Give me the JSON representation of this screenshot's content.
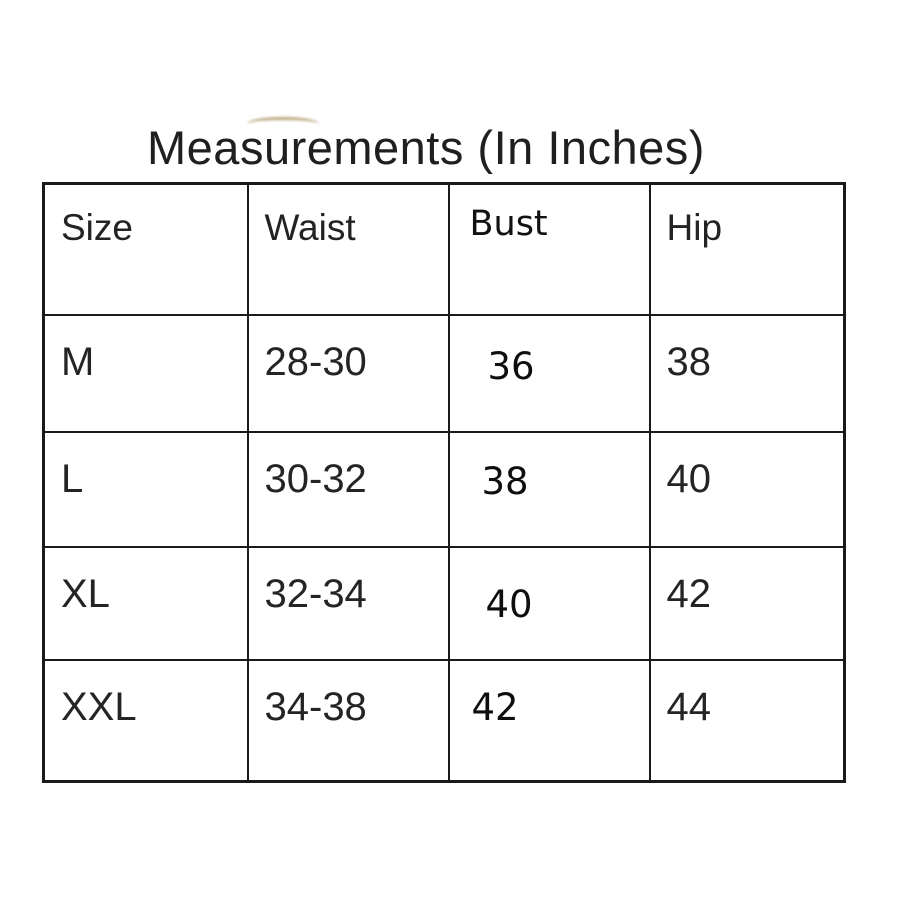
{
  "page": {
    "title": "Measurements (In Inches)"
  },
  "table": {
    "headers": [
      "Size",
      "Waist",
      "Bust",
      "Hip"
    ],
    "rows": [
      {
        "size": "M",
        "waist": "28-30",
        "bust": "36",
        "hip": "38"
      },
      {
        "size": "L",
        "waist": "30-32",
        "bust": "38",
        "hip": "40"
      },
      {
        "size": "XL",
        "waist": "32-34",
        "bust": "40",
        "hip": "42"
      },
      {
        "size": "XXL",
        "waist": "34-38",
        "bust": "42",
        "hip": "44"
      }
    ]
  },
  "chart_data": {
    "type": "table",
    "title": "Measurements (In Inches)",
    "columns": [
      "Size",
      "Waist",
      "Bust",
      "Hip"
    ],
    "rows": [
      [
        "M",
        "28-30",
        "36",
        "38"
      ],
      [
        "L",
        "30-32",
        "38",
        "40"
      ],
      [
        "XL",
        "32-34",
        "40",
        "42"
      ],
      [
        "XXL",
        "34-38",
        "42",
        "44"
      ]
    ],
    "units": "inches"
  },
  "colors": {
    "background": "#ffffff",
    "text": "#242424",
    "border": "#1a1a1a",
    "stain": "#a9935f"
  }
}
